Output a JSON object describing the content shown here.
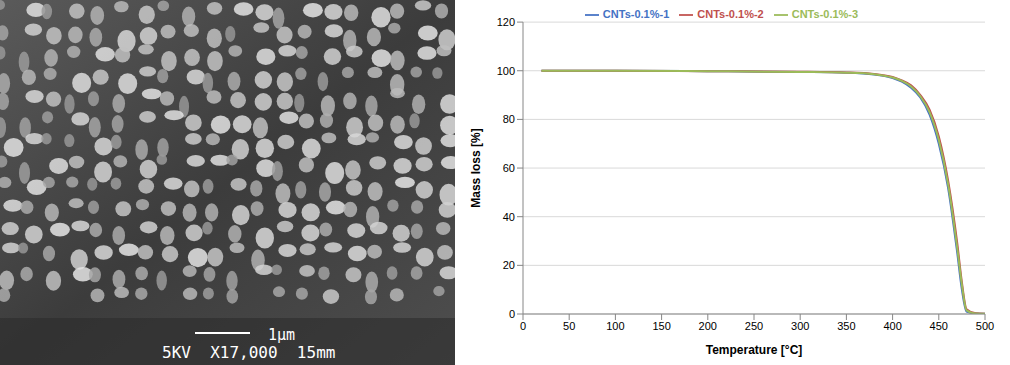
{
  "micrograph": {
    "scale_bar": "1μm",
    "caption": "5KV  X17,000  15mm"
  },
  "chart_data": {
    "type": "line",
    "x": [
      20,
      100,
      200,
      300,
      350,
      380,
      400,
      410,
      420,
      430,
      440,
      450,
      460,
      470,
      475,
      480,
      490,
      500
    ],
    "series": [
      {
        "name": "CNTs-0.1%-1",
        "color": "#4472c4",
        "values": [
          100,
          100,
          99.8,
          99.5,
          99.2,
          98.5,
          97,
          95.5,
          93,
          89,
          82,
          70,
          52,
          25,
          10,
          1,
          0.2,
          0.1
        ]
      },
      {
        "name": "CNTs-0.1%-2",
        "color": "#c0504d",
        "values": [
          100,
          100,
          99.8,
          99.6,
          99.3,
          98.7,
          97.4,
          96,
          94,
          90,
          84,
          73,
          55,
          29,
          13,
          2,
          0.3,
          0.1
        ]
      },
      {
        "name": "CNTs-0.1%-3",
        "color": "#9bbb59",
        "values": [
          100,
          100,
          99.8,
          99.5,
          99.2,
          98.6,
          97.2,
          95.8,
          93.5,
          89.5,
          83,
          71.5,
          53.5,
          27,
          12,
          1.5,
          0.2,
          0.1
        ]
      }
    ],
    "x_label": "Temperature [°C]",
    "y_label": "Mass loss [%]",
    "xlim": [
      0,
      500
    ],
    "xticks": [
      0,
      50,
      100,
      150,
      200,
      250,
      300,
      350,
      400,
      450,
      500
    ],
    "ylim": [
      0,
      120
    ],
    "yticks": [
      0,
      20,
      40,
      60,
      80,
      100,
      120
    ],
    "grid": true,
    "legend": "top"
  }
}
